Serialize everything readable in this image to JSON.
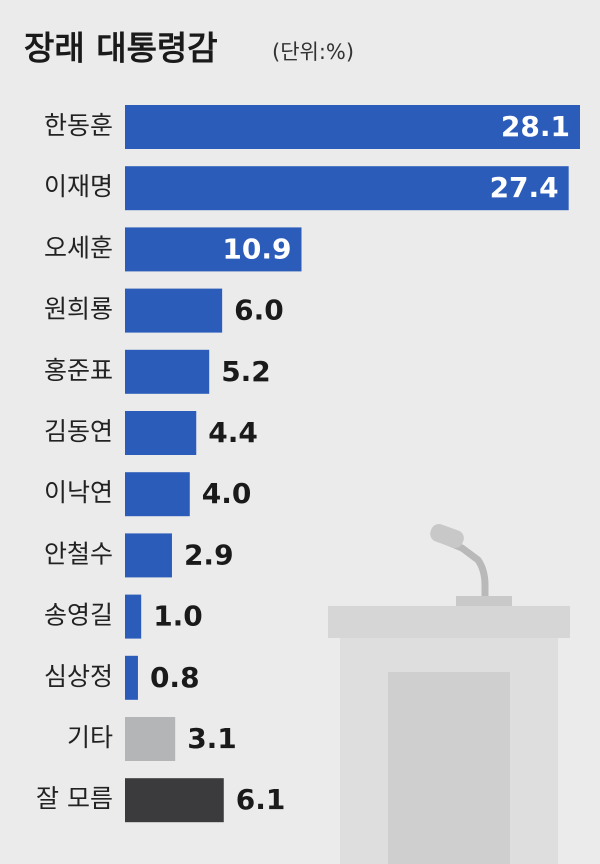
{
  "chart_data": {
    "type": "bar",
    "orientation": "horizontal",
    "title": "장래 대통령감",
    "subtitle": "(단위:%)",
    "categories": [
      "한동훈",
      "이재명",
      "오세훈",
      "원희룡",
      "홍준표",
      "김동연",
      "이낙연",
      "안철수",
      "송영길",
      "심상정",
      "기타",
      "잘 모름"
    ],
    "values": [
      28.1,
      27.4,
      10.9,
      6.0,
      5.2,
      4.4,
      4.0,
      2.9,
      1.0,
      0.8,
      3.1,
      6.1
    ],
    "value_labels": [
      "28.1",
      "27.4",
      "10.9",
      "6.0",
      "5.2",
      "4.4",
      "4.0",
      "2.9",
      "1.0",
      "0.8",
      "3.1",
      "6.1"
    ],
    "colors": [
      "#2c5cb9",
      "#2c5cb9",
      "#2c5cb9",
      "#2c5cb9",
      "#2c5cb9",
      "#2c5cb9",
      "#2c5cb9",
      "#2c5cb9",
      "#2c5cb9",
      "#2c5cb9",
      "#b4b5b7",
      "#3b3b3d"
    ]
  }
}
